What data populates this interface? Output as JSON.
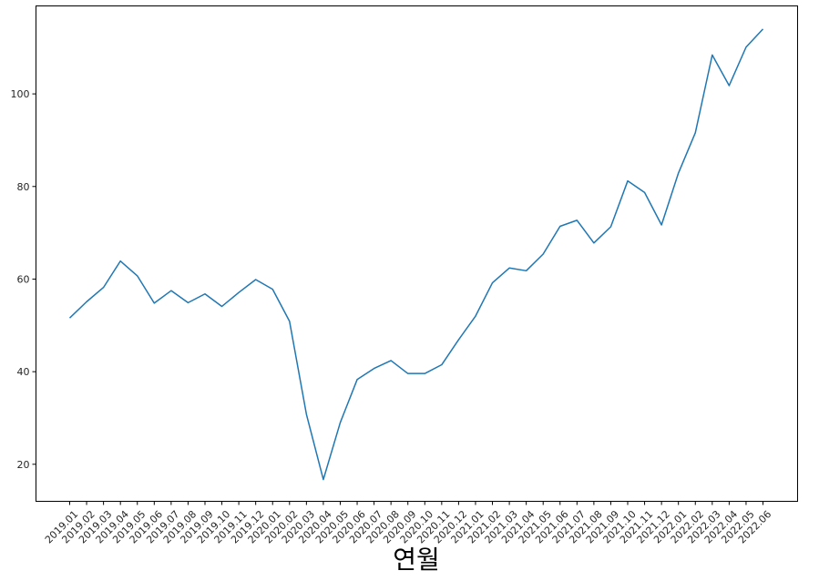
{
  "chart_data": {
    "type": "line",
    "title": "",
    "xlabel": "연월",
    "ylabel": "",
    "ylim": [
      12,
      119
    ],
    "yticks": [
      20,
      40,
      60,
      80,
      100
    ],
    "grid": false,
    "colors": {
      "line": "#1f77b4",
      "axis": "#000000"
    },
    "categories": [
      "2019.01",
      "2019.02",
      "2019.03",
      "2019.04",
      "2019.05",
      "2019.06",
      "2019.07",
      "2019.08",
      "2019.09",
      "2019.10",
      "2019.11",
      "2019.12",
      "2020.01",
      "2020.02",
      "2020.03",
      "2020.04",
      "2020.05",
      "2020.06",
      "2020.07",
      "2020.08",
      "2020.09",
      "2020.10",
      "2020.11",
      "2020.12",
      "2021.01",
      "2021.02",
      "2021.03",
      "2021.04",
      "2021.05",
      "2021.06",
      "2021.07",
      "2021.08",
      "2021.09",
      "2021.10",
      "2021.11",
      "2021.12",
      "2022.01",
      "2022.02",
      "2022.03",
      "2022.04",
      "2022.05",
      "2022.06"
    ],
    "values": [
      51.6,
      55.1,
      58.2,
      63.9,
      60.7,
      54.8,
      57.5,
      54.9,
      56.8,
      54.1,
      57.1,
      59.9,
      57.8,
      50.9,
      30.8,
      16.7,
      29.0,
      38.3,
      40.7,
      42.4,
      39.6,
      39.6,
      41.5,
      46.9,
      52.0,
      59.2,
      62.4,
      61.8,
      65.4,
      71.4,
      72.7,
      67.8,
      71.3,
      81.2,
      78.7,
      71.7,
      82.9,
      91.6,
      108.4,
      101.8,
      110.1,
      114.0
    ]
  }
}
